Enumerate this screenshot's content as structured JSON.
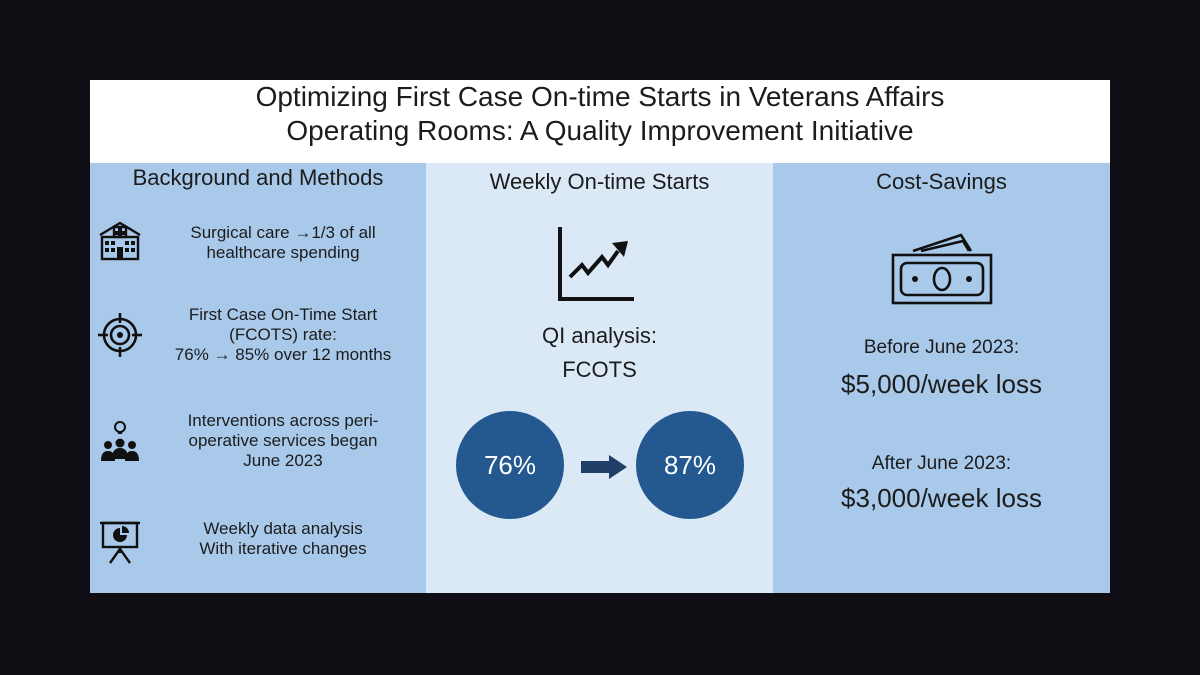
{
  "title": {
    "line1": "Optimizing First Case On-time Starts in Veterans Affairs",
    "line2": "Operating Rooms: A Quality Improvement Initiative"
  },
  "left": {
    "heading": "Background and Methods",
    "items": [
      {
        "icon": "hospital-icon",
        "lines": [
          "Surgical care →1/3 of all",
          "healthcare spending"
        ]
      },
      {
        "icon": "target-icon",
        "lines": [
          "First Case On-Time Start",
          "(FCOTS) rate:",
          "76% → 85% over 12 months"
        ]
      },
      {
        "icon": "team-idea-icon",
        "lines": [
          "Interventions across peri-",
          "operative services began",
          "June 2023"
        ]
      },
      {
        "icon": "presentation-chart-icon",
        "lines": [
          "Weekly data analysis",
          "With iterative changes"
        ]
      }
    ]
  },
  "middle": {
    "heading": "Weekly On-time Starts",
    "icon": "trend-up-chart-icon",
    "analysis_line1": "QI analysis:",
    "analysis_line2": "FCOTS",
    "before_value": "76%",
    "after_value": "87%",
    "colors": {
      "circle": "#23598f",
      "arrow": "#1f3f66"
    }
  },
  "right": {
    "heading": "Cost-Savings",
    "icon": "money-icon",
    "before_label": "Before June 2023:",
    "before_value": "$5,000/week loss",
    "after_label": "After June 2023:",
    "after_value": "$3,000/week loss"
  },
  "colors": {
    "background": "#0e0e14",
    "side_panels": "#a9c9ea",
    "middle_panel": "#dbe8f6"
  }
}
